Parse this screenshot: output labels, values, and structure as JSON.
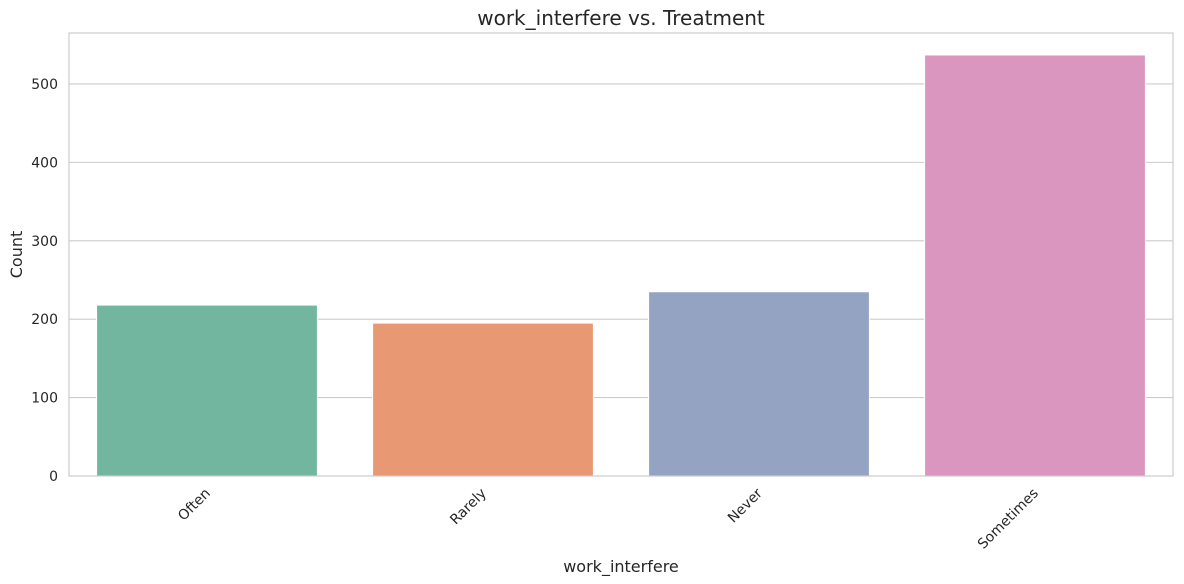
{
  "chart_data": {
    "type": "bar",
    "title": "work_interfere vs. Treatment",
    "xlabel": "work_interfere",
    "ylabel": "Count",
    "categories": [
      "Often",
      "Rarely",
      "Never",
      "Sometimes"
    ],
    "values": [
      218,
      195,
      235,
      537
    ],
    "ylim": [
      0,
      565
    ],
    "yticks": [
      0,
      100,
      200,
      300,
      400,
      500
    ],
    "grid": true,
    "colors": [
      "#73b6a0",
      "#e89873",
      "#94a3c2",
      "#db96c0"
    ]
  }
}
